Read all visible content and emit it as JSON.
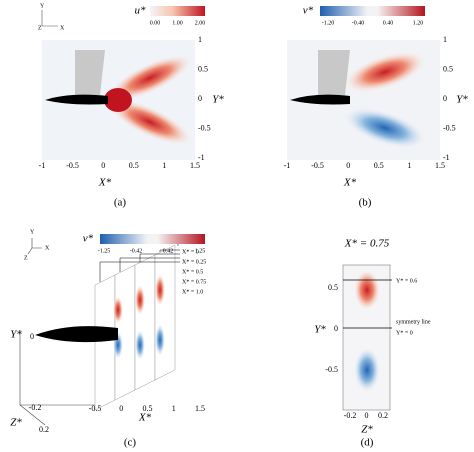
{
  "panels": [
    {
      "label": "(a)",
      "colorbar": {
        "title": "u*",
        "ticks": [
          "0.00",
          "1.00",
          "2.00"
        ]
      },
      "x_ticks": [
        "-1",
        "-0.5",
        "0",
        "0.5",
        "1",
        "1.5"
      ],
      "y_ticks": [
        "1",
        "0.5",
        "0",
        "-0.5",
        "-1"
      ],
      "x_label": "X*",
      "y_label": "Y*",
      "triad": [
        "Y",
        "Z",
        "X"
      ]
    },
    {
      "label": "(b)",
      "colorbar": {
        "title": "v*",
        "ticks": [
          "-1.20",
          "-0.40",
          "0.40",
          "1.20"
        ]
      },
      "x_ticks": [
        "-1",
        "-0.5",
        "0",
        "0.5",
        "1",
        "1.5"
      ],
      "y_ticks": [
        "1",
        "0.5",
        "0",
        "-0.5",
        "-1"
      ],
      "x_label": "X*",
      "y_label": "Y*"
    },
    {
      "label": "(c)",
      "colorbar": {
        "title": "v*",
        "ticks": [
          "-1.25",
          "-0.42",
          "0.42",
          "1.25"
        ]
      },
      "slices": [
        "X* = 0",
        "X* = 0.25",
        "X* = 0.5",
        "X* = 0.75",
        "X* = 1.0"
      ],
      "x_ticks": [
        "-0.5",
        "0",
        "0.5",
        "1",
        "1.5"
      ],
      "x_label": "X*",
      "y_label": "Y*",
      "y_tick": "0",
      "z_label": "Z*",
      "z_ticks": [
        "-0.2",
        "0.2"
      ],
      "triad": [
        "Y",
        "X",
        "Z"
      ]
    },
    {
      "label": "(d)",
      "title": "X* = 0.75",
      "line_labels": [
        "Y* = 0.6",
        "symmetry line",
        "Y* = 0"
      ],
      "y_ticks": [
        "0.5",
        "0",
        "-0.5"
      ],
      "x_ticks": [
        "-0.2",
        "0",
        "0.2"
      ],
      "y_label": "Y*",
      "x_label": "Z*"
    }
  ]
}
